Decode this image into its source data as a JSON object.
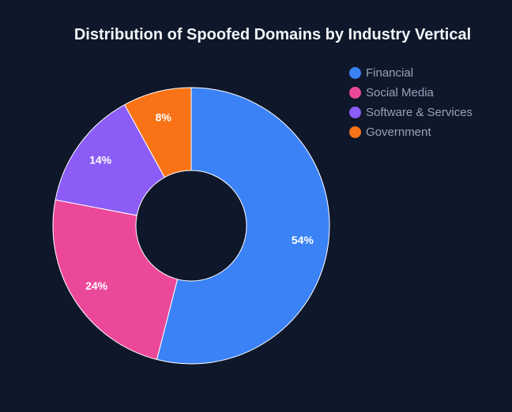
{
  "chart_data": {
    "type": "pie",
    "variant": "donut",
    "title": "Distribution of Spoofed Domains by Industry Vertical",
    "categories": [
      "Financial",
      "Social Media",
      "Software & Services",
      "Government"
    ],
    "values": [
      54,
      24,
      14,
      8
    ],
    "labels": [
      "54%",
      "24%",
      "14%",
      "8%"
    ],
    "colors": [
      "#3b82f6",
      "#ec4899",
      "#8b5cf6",
      "#f97316"
    ],
    "legend_position": "top-right"
  }
}
